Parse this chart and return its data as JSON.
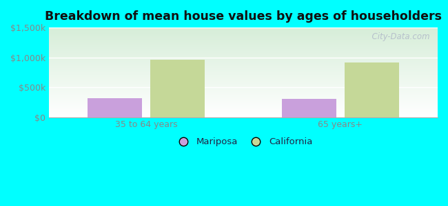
{
  "title": "Breakdown of mean house values by ages of householders",
  "categories": [
    "35 to 64 years",
    "65 years+"
  ],
  "mariposa_values": [
    320000,
    310000
  ],
  "california_values": [
    960000,
    910000
  ],
  "mariposa_color": "#c9a0dc",
  "california_color": "#c5d898",
  "ylim": [
    0,
    1500000
  ],
  "yticks": [
    0,
    500000,
    1000000,
    1500000
  ],
  "ytick_labels": [
    "$0",
    "$500k",
    "$1,000k",
    "$1,500k"
  ],
  "background_color": "#00ffff",
  "plot_bg_top_left": "#d6edd8",
  "plot_bg_bottom_right": "#ffffff",
  "legend_labels": [
    "Mariposa",
    "California"
  ],
  "watermark": "  City-Data.com",
  "bar_width": 0.28,
  "tick_label_color": "#888888",
  "legend_text_color": "#222244",
  "title_color": "#111111"
}
